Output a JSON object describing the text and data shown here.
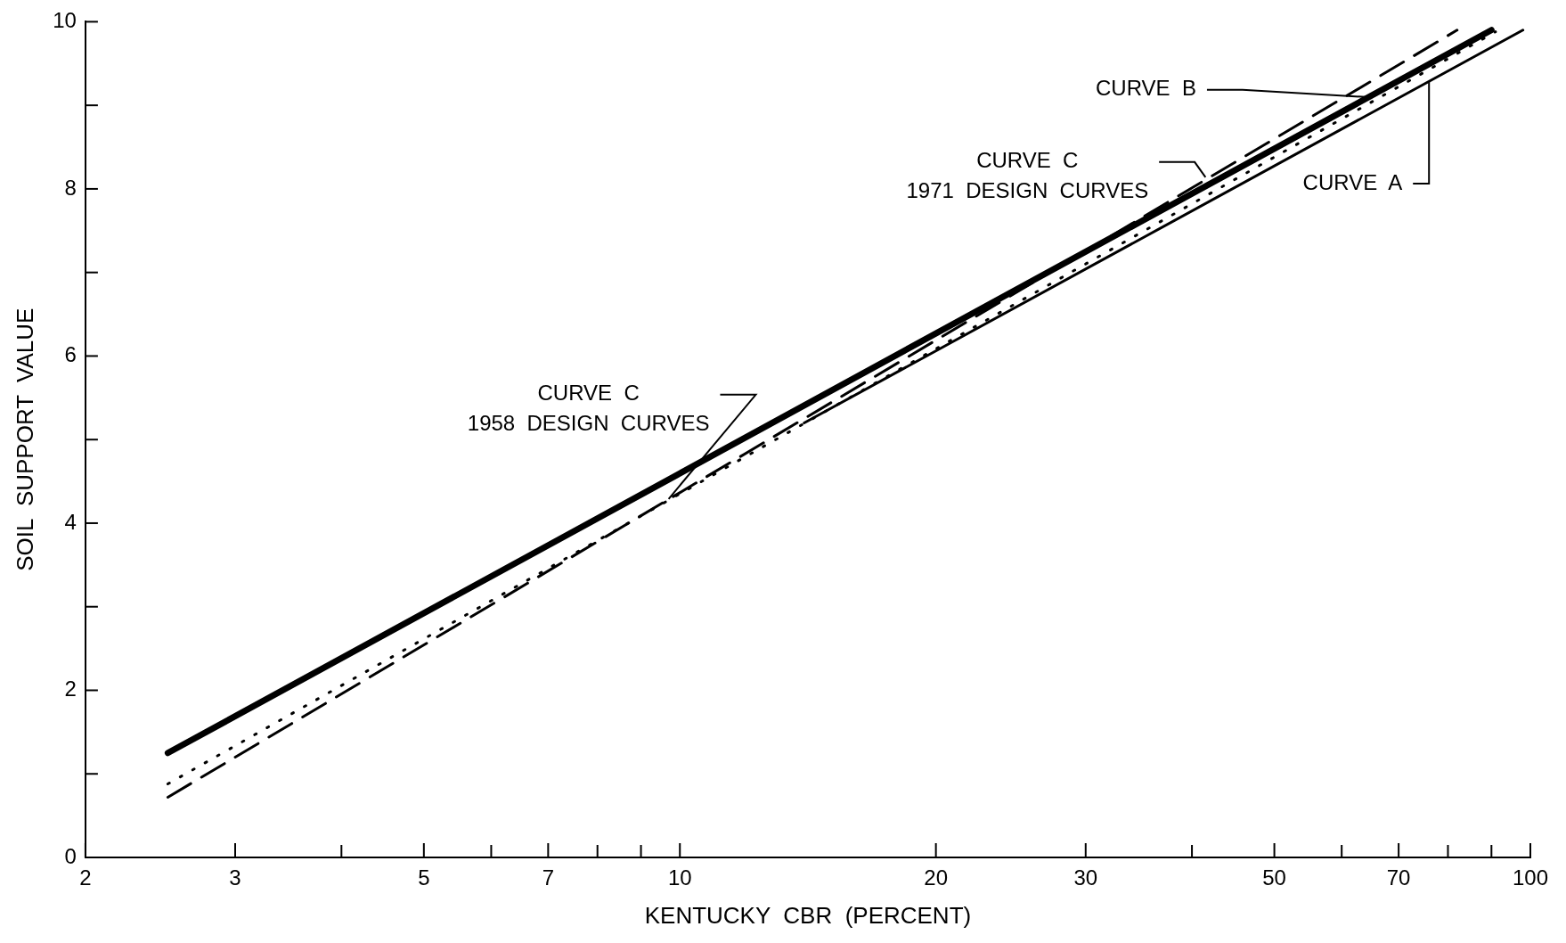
{
  "chart_data": {
    "type": "line",
    "xlabel": "KENTUCKY  CBR  (PERCENT)",
    "ylabel": "SOIL  SUPPORT  VALUE",
    "log": "x",
    "xlim": [
      2,
      100
    ],
    "ylim": [
      0,
      10
    ],
    "xticks": [
      2,
      3,
      {
        "value": 4,
        "label": null
      },
      5,
      {
        "value": 6,
        "label": null
      },
      7,
      {
        "value": 8,
        "label": null
      },
      {
        "value": 9,
        "label": null
      },
      10,
      20,
      30,
      {
        "value": 40,
        "label": null
      },
      50,
      {
        "value": 60,
        "label": null
      },
      70,
      {
        "value": 80,
        "label": null
      },
      {
        "value": 90,
        "label": null
      },
      100
    ],
    "yticks": [
      0,
      {
        "value": 1,
        "label": null
      },
      2,
      {
        "value": 3,
        "label": null
      },
      4,
      {
        "value": 5,
        "label": null
      },
      6,
      {
        "value": 7,
        "label": null
      },
      8,
      {
        "value": 9,
        "label": null
      },
      10
    ],
    "series": [
      {
        "color": "#000000",
        "line_style": "solid",
        "x": [
          2.5,
          90
        ],
        "values": [
          1.25,
          9.9
        ]
      },
      {
        "color": "#000000",
        "line_style": "dotted",
        "x": [
          2.5,
          91
        ],
        "values": [
          0.88,
          9.88
        ]
      },
      {
        "color": "#000000",
        "line_style": "dashed",
        "x": [
          2.5,
          82
        ],
        "values": [
          0.72,
          9.9
        ]
      },
      {
        "color": "#000000",
        "line_style": "solid",
        "x": [
          14,
          98
        ],
        "values": [
          5.2,
          9.9
        ]
      }
    ],
    "annotations": [
      {
        "text": "CURVE  B",
        "x": 64,
        "y": 9.1
      },
      {
        "text": "CURVE  C\n1971  DESIGN  CURVES",
        "x": 41.5,
        "y": 8.14
      },
      {
        "text": "CURVE  A",
        "x": 76,
        "y": 9.29
      },
      {
        "text": "CURVE  C\n1958  DESIGN  CURVES",
        "x": 9.7,
        "y": 4.29
      }
    ],
    "marker": "none",
    "grid": false,
    "legend": false
  }
}
